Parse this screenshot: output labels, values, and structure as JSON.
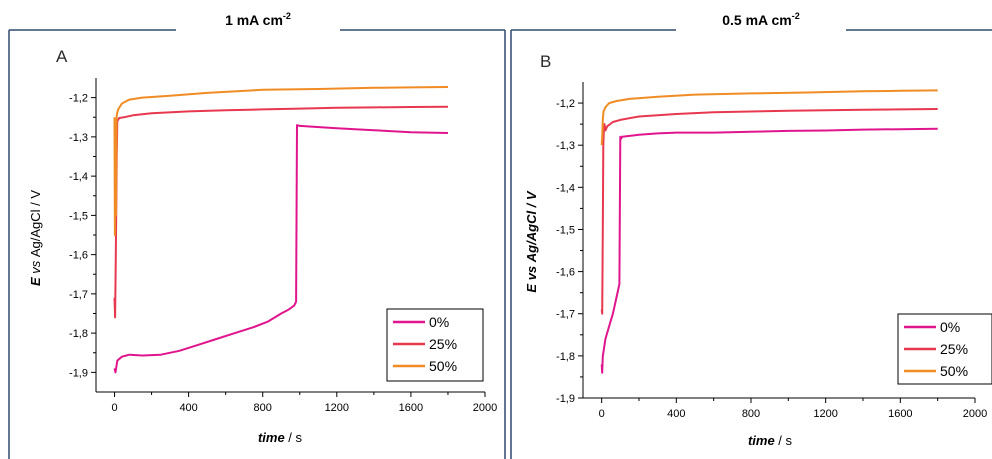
{
  "chart_data": [
    {
      "type": "line",
      "panel": "A",
      "title": "1 mA cm",
      "title_sup": "-2",
      "xlabel_italic": "time",
      "xlabel_rest": " / s",
      "ylabel_e": "E",
      "ylabel_vs": " vs ",
      "ylabel_rest": "Ag/AgCl / V",
      "xlim": [
        -100,
        2000
      ],
      "ylim": [
        -1.95,
        -1.15
      ],
      "xticks": [
        0,
        400,
        800,
        1200,
        1600,
        2000
      ],
      "xtick_labels": [
        "0",
        "400",
        "800",
        "1200",
        "1600",
        "2000"
      ],
      "yticks": [
        -1.9,
        -1.8,
        -1.7,
        -1.6,
        -1.5,
        -1.4,
        -1.3,
        -1.2
      ],
      "ytick_labels": [
        "-1,9",
        "-1,8",
        "-1,7",
        "-1,6",
        "-1,5",
        "-1,4",
        "-1,3",
        "-1,2"
      ],
      "grid": false,
      "legend_position": "bottom-right",
      "series": [
        {
          "name": "0%",
          "color": "#e0158e",
          "x": [
            0,
            5,
            15,
            40,
            80,
            150,
            250,
            350,
            450,
            550,
            650,
            750,
            830,
            900,
            940,
            970,
            980,
            985,
            1000,
            1200,
            1400,
            1600,
            1800
          ],
          "y": [
            -1.89,
            -1.9,
            -1.87,
            -1.86,
            -1.855,
            -1.857,
            -1.855,
            -1.845,
            -1.83,
            -1.815,
            -1.8,
            -1.785,
            -1.77,
            -1.75,
            -1.74,
            -1.73,
            -1.72,
            -1.27,
            -1.272,
            -1.278,
            -1.283,
            -1.288,
            -1.29
          ]
        },
        {
          "name": "25%",
          "color": "#e8384f",
          "x": [
            0,
            3,
            6,
            9,
            12,
            15,
            25,
            50,
            100,
            200,
            400,
            600,
            800,
            1000,
            1200,
            1400,
            1600,
            1800
          ],
          "y": [
            -1.71,
            -1.76,
            -1.65,
            -1.5,
            -1.35,
            -1.26,
            -1.252,
            -1.25,
            -1.245,
            -1.24,
            -1.235,
            -1.232,
            -1.23,
            -1.228,
            -1.226,
            -1.225,
            -1.224,
            -1.223
          ]
        },
        {
          "name": "50%",
          "color": "#f08c23",
          "x": [
            0,
            2,
            5,
            8,
            11,
            14,
            20,
            40,
            80,
            150,
            300,
            500,
            800,
            1100,
            1400,
            1600,
            1800
          ],
          "y": [
            -1.25,
            -1.55,
            -1.35,
            -1.5,
            -1.25,
            -1.24,
            -1.23,
            -1.215,
            -1.205,
            -1.2,
            -1.195,
            -1.188,
            -1.18,
            -1.178,
            -1.175,
            -1.174,
            -1.173
          ]
        }
      ]
    },
    {
      "type": "line",
      "panel": "B",
      "title": "0.5 mA cm",
      "title_sup": "-2",
      "xlabel_italic": "time",
      "xlabel_rest": " / s",
      "ylabel_e": "E vs",
      "ylabel_vs": " ",
      "ylabel_rest": "Ag/AgCl / V",
      "xlim": [
        -100,
        2000
      ],
      "ylim": [
        -1.9,
        -1.15
      ],
      "xticks": [
        0,
        400,
        800,
        1200,
        1600,
        2000
      ],
      "xtick_labels": [
        "0",
        "400",
        "800",
        "1200",
        "1600",
        "2000"
      ],
      "yticks": [
        -1.9,
        -1.8,
        -1.7,
        -1.6,
        -1.5,
        -1.4,
        -1.3,
        -1.2
      ],
      "ytick_labels": [
        "-1,9",
        "-1,8",
        "-1,7",
        "-1,6",
        "-1,5",
        "-1,4",
        "-1,3",
        "-1,2"
      ],
      "grid": false,
      "legend_position": "bottom-right",
      "series": [
        {
          "name": "0%",
          "color": "#e0158e",
          "x": [
            0,
            3,
            6,
            10,
            20,
            40,
            60,
            80,
            95,
            100,
            103,
            110,
            150,
            200,
            300,
            400,
            600,
            800,
            1000,
            1200,
            1400,
            1600,
            1800
          ],
          "y": [
            -1.82,
            -1.84,
            -1.8,
            -1.79,
            -1.76,
            -1.73,
            -1.7,
            -1.66,
            -1.63,
            -1.28,
            -1.285,
            -1.28,
            -1.278,
            -1.275,
            -1.272,
            -1.27,
            -1.27,
            -1.268,
            -1.266,
            -1.265,
            -1.263,
            -1.262,
            -1.261
          ]
        },
        {
          "name": "25%",
          "color": "#e8384f",
          "x": [
            0,
            3,
            6,
            9,
            12,
            15,
            20,
            30,
            60,
            100,
            200,
            400,
            600,
            800,
            1000,
            1200,
            1400,
            1600,
            1800
          ],
          "y": [
            -1.69,
            -1.7,
            -1.5,
            -1.3,
            -1.26,
            -1.25,
            -1.265,
            -1.255,
            -1.245,
            -1.24,
            -1.232,
            -1.226,
            -1.222,
            -1.22,
            -1.218,
            -1.217,
            -1.216,
            -1.215,
            -1.214
          ]
        },
        {
          "name": "50%",
          "color": "#f08c23",
          "x": [
            0,
            3,
            6,
            10,
            20,
            40,
            80,
            150,
            300,
            500,
            800,
            1100,
            1400,
            1600,
            1800
          ],
          "y": [
            -1.3,
            -1.28,
            -1.24,
            -1.22,
            -1.21,
            -1.2,
            -1.195,
            -1.19,
            -1.185,
            -1.18,
            -1.177,
            -1.175,
            -1.172,
            -1.171,
            -1.17
          ]
        }
      ]
    }
  ]
}
